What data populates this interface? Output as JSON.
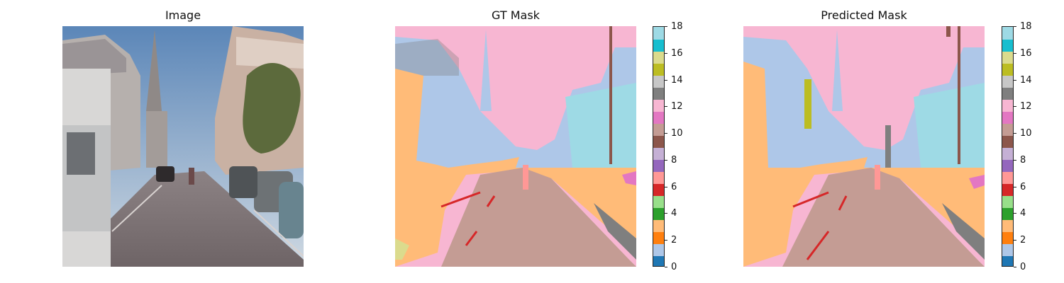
{
  "titles": {
    "image": "Image",
    "gt": "GT Mask",
    "pred": "Predicted Mask"
  },
  "chart_data": {
    "type": "heatmap",
    "colormap": "tab20",
    "vmin": 0,
    "vmax": 18,
    "colorbar_ticks": [
      "0",
      "2",
      "4",
      "6",
      "8",
      "10",
      "12",
      "14",
      "16",
      "18"
    ],
    "colors": [
      "#1f77b4",
      "#aec7e8",
      "#ff7f0e",
      "#ffbb78",
      "#2ca02c",
      "#98df8a",
      "#d62728",
      "#ff9896",
      "#9467bd",
      "#c5b0d5",
      "#8c564b",
      "#c49c94",
      "#e377c2",
      "#f7b6d2",
      "#7f7f7f",
      "#c7c7c7",
      "#bcbd22",
      "#dbdb8d",
      "#17becf",
      "#9edae5"
    ]
  }
}
